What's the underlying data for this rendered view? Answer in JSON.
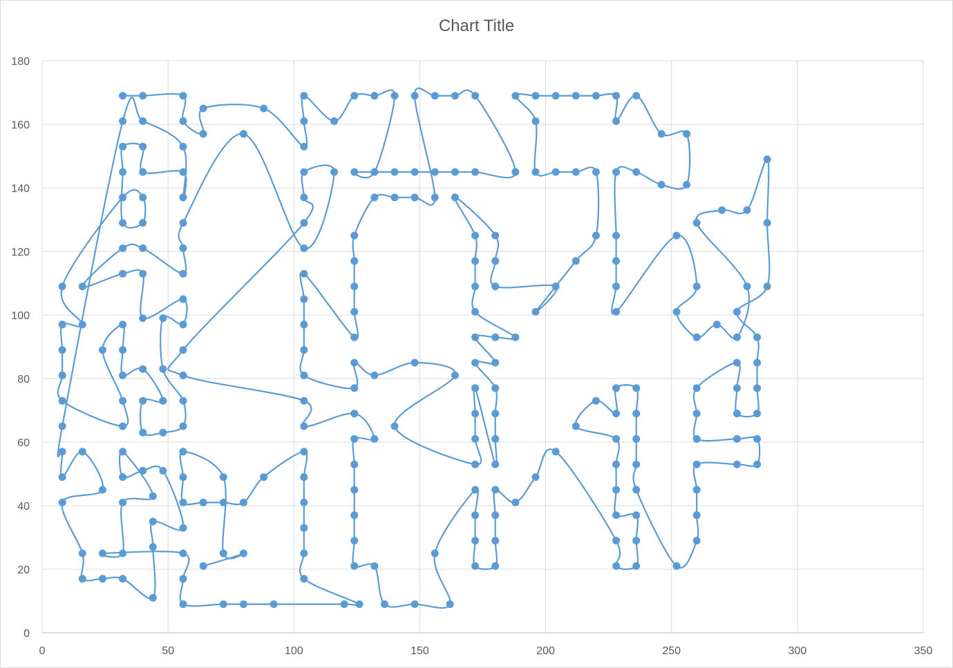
{
  "chart_data": {
    "type": "scatter",
    "title": "Chart Title",
    "xlabel": "",
    "ylabel": "",
    "xlim": [
      0,
      350
    ],
    "ylim": [
      0,
      180
    ],
    "x_ticks": [
      0,
      50,
      100,
      150,
      200,
      250,
      300,
      350
    ],
    "y_ticks": [
      0,
      20,
      40,
      60,
      80,
      100,
      120,
      140,
      160,
      180
    ],
    "grid": true,
    "legend": "none",
    "line_style": "smoothed",
    "series_color": "#5B9BD5",
    "series": [
      {
        "points": [
          [
            32,
            169
          ],
          [
            40,
            169
          ],
          [
            56,
            169
          ],
          [
            56,
            161
          ],
          [
            64,
            157
          ],
          [
            64,
            165
          ],
          [
            88,
            165
          ],
          [
            104,
            153
          ],
          [
            104,
            161
          ],
          [
            104,
            169
          ],
          [
            116,
            161
          ],
          [
            124,
            169
          ],
          [
            132,
            169
          ],
          [
            140,
            169
          ],
          [
            132,
            145
          ],
          [
            124,
            145
          ],
          [
            140,
            145
          ],
          [
            148,
            145
          ],
          [
            156,
            145
          ],
          [
            164,
            145
          ],
          [
            172,
            145
          ],
          [
            188,
            145
          ],
          [
            172,
            169
          ],
          [
            164,
            169
          ],
          [
            156,
            169
          ],
          [
            148,
            169
          ],
          [
            156,
            137
          ],
          [
            148,
            137
          ],
          [
            140,
            137
          ],
          [
            132,
            137
          ],
          [
            124,
            125
          ],
          [
            124,
            117
          ],
          [
            124,
            109
          ],
          [
            124,
            101
          ],
          [
            124,
            93
          ],
          [
            104,
            113
          ],
          [
            104,
            105
          ],
          [
            104,
            97
          ],
          [
            104,
            89
          ],
          [
            104,
            81
          ],
          [
            124,
            77
          ],
          [
            124,
            85
          ],
          [
            132,
            81
          ],
          [
            148,
            85
          ],
          [
            164,
            81
          ],
          [
            140,
            65
          ],
          [
            172,
            53
          ],
          [
            172,
            61
          ],
          [
            172,
            69
          ],
          [
            172,
            77
          ],
          [
            180,
            53
          ],
          [
            180,
            61
          ],
          [
            180,
            69
          ],
          [
            180,
            77
          ],
          [
            172,
            85
          ],
          [
            180,
            85
          ],
          [
            172,
            93
          ],
          [
            180,
            93
          ],
          [
            188,
            93
          ],
          [
            172,
            101
          ],
          [
            172,
            109
          ],
          [
            172,
            117
          ],
          [
            172,
            125
          ],
          [
            164,
            137
          ],
          [
            180,
            125
          ],
          [
            180,
            117
          ],
          [
            180,
            109
          ],
          [
            204,
            109
          ],
          [
            196,
            101
          ],
          [
            212,
            117
          ],
          [
            220,
            125
          ],
          [
            220,
            145
          ],
          [
            212,
            145
          ],
          [
            204,
            145
          ],
          [
            196,
            145
          ],
          [
            196,
            161
          ],
          [
            188,
            169
          ],
          [
            196,
            169
          ],
          [
            204,
            169
          ],
          [
            212,
            169
          ],
          [
            220,
            169
          ],
          [
            228,
            169
          ],
          [
            228,
            161
          ],
          [
            236,
            169
          ],
          [
            246,
            157
          ],
          [
            256,
            157
          ],
          [
            256,
            141
          ],
          [
            246,
            141
          ],
          [
            236,
            145
          ],
          [
            228,
            145
          ],
          [
            228,
            125
          ],
          [
            228,
            117
          ],
          [
            228,
            109
          ],
          [
            228,
            101
          ],
          [
            252,
            125
          ],
          [
            260,
            109
          ],
          [
            252,
            101
          ],
          [
            260,
            93
          ],
          [
            268,
            97
          ],
          [
            276,
            93
          ],
          [
            280,
            109
          ],
          [
            260,
            129
          ],
          [
            270,
            133
          ],
          [
            280,
            133
          ],
          [
            288,
            149
          ],
          [
            288,
            129
          ],
          [
            288,
            109
          ],
          [
            276,
            101
          ],
          [
            284,
            93
          ],
          [
            284,
            85
          ],
          [
            284,
            77
          ],
          [
            284,
            69
          ],
          [
            276,
            69
          ],
          [
            276,
            77
          ],
          [
            276,
            85
          ],
          [
            260,
            77
          ],
          [
            260,
            69
          ],
          [
            260,
            61
          ],
          [
            276,
            61
          ],
          [
            284,
            61
          ],
          [
            284,
            53
          ],
          [
            276,
            53
          ],
          [
            260,
            53
          ],
          [
            260,
            45
          ],
          [
            260,
            37
          ],
          [
            260,
            29
          ],
          [
            252,
            21
          ],
          [
            236,
            45
          ],
          [
            236,
            53
          ],
          [
            236,
            61
          ],
          [
            236,
            69
          ],
          [
            236,
            77
          ],
          [
            228,
            77
          ],
          [
            228,
            69
          ],
          [
            220,
            73
          ],
          [
            212,
            65
          ],
          [
            228,
            61
          ],
          [
            228,
            53
          ],
          [
            228,
            45
          ],
          [
            228,
            37
          ],
          [
            236,
            37
          ],
          [
            236,
            29
          ],
          [
            236,
            21
          ],
          [
            228,
            21
          ],
          [
            228,
            29
          ],
          [
            204,
            57
          ],
          [
            196,
            49
          ],
          [
            188,
            41
          ],
          [
            180,
            45
          ],
          [
            180,
            37
          ],
          [
            180,
            29
          ],
          [
            180,
            21
          ],
          [
            172,
            21
          ],
          [
            172,
            29
          ],
          [
            172,
            37
          ],
          [
            172,
            45
          ],
          [
            156,
            25
          ],
          [
            162,
            9
          ],
          [
            148,
            9
          ],
          [
            136,
            9
          ],
          [
            132,
            21
          ],
          [
            124,
            21
          ],
          [
            124,
            29
          ],
          [
            124,
            37
          ],
          [
            124,
            45
          ],
          [
            124,
            53
          ],
          [
            124,
            61
          ],
          [
            132,
            61
          ],
          [
            124,
            69
          ],
          [
            104,
            65
          ],
          [
            104,
            73
          ],
          [
            56,
            81
          ],
          [
            56,
            89
          ],
          [
            104,
            129
          ],
          [
            104,
            137
          ],
          [
            104,
            145
          ],
          [
            116,
            145
          ],
          [
            104,
            121
          ],
          [
            80,
            157
          ],
          [
            56,
            129
          ],
          [
            56,
            121
          ],
          [
            56,
            113
          ],
          [
            40,
            121
          ],
          [
            32,
            121
          ],
          [
            16,
            109
          ],
          [
            32,
            113
          ],
          [
            40,
            113
          ],
          [
            40,
            99
          ],
          [
            56,
            105
          ],
          [
            56,
            97
          ],
          [
            48,
            99
          ],
          [
            48,
            83
          ],
          [
            56,
            73
          ],
          [
            56,
            65
          ],
          [
            48,
            63
          ],
          [
            40,
            63
          ],
          [
            40,
            73
          ],
          [
            48,
            73
          ],
          [
            40,
            83
          ],
          [
            32,
            81
          ],
          [
            32,
            89
          ],
          [
            32,
            97
          ],
          [
            24,
            89
          ],
          [
            32,
            73
          ],
          [
            32,
            65
          ],
          [
            8,
            73
          ],
          [
            8,
            81
          ],
          [
            8,
            89
          ],
          [
            8,
            97
          ],
          [
            16,
            97
          ],
          [
            8,
            109
          ],
          [
            32,
            137
          ],
          [
            40,
            137
          ],
          [
            40,
            129
          ],
          [
            32,
            129
          ],
          [
            32,
            145
          ],
          [
            32,
            153
          ],
          [
            40,
            153
          ],
          [
            40,
            145
          ],
          [
            56,
            145
          ],
          [
            56,
            137
          ],
          [
            56,
            153
          ],
          [
            40,
            161
          ],
          [
            32,
            161
          ],
          [
            8,
            65
          ],
          [
            8,
            57
          ],
          [
            8,
            49
          ],
          [
            16,
            57
          ],
          [
            24,
            45
          ],
          [
            8,
            41
          ],
          [
            16,
            25
          ],
          [
            16,
            17
          ],
          [
            24,
            17
          ],
          [
            32,
            17
          ],
          [
            44,
            11
          ],
          [
            44,
            27
          ],
          [
            44,
            35
          ],
          [
            56,
            33
          ],
          [
            48,
            51
          ],
          [
            40,
            51
          ],
          [
            32,
            49
          ],
          [
            32,
            57
          ],
          [
            44,
            43
          ],
          [
            32,
            41
          ],
          [
            32,
            25
          ],
          [
            24,
            25
          ],
          [
            56,
            25
          ],
          [
            56,
            17
          ],
          [
            56,
            9
          ],
          [
            72,
            9
          ],
          [
            80,
            9
          ],
          [
            92,
            9
          ],
          [
            120,
            9
          ],
          [
            126,
            9
          ],
          [
            104,
            17
          ],
          [
            104,
            25
          ],
          [
            104,
            33
          ],
          [
            104,
            41
          ],
          [
            104,
            49
          ],
          [
            104,
            57
          ],
          [
            88,
            49
          ],
          [
            80,
            41
          ],
          [
            72,
            41
          ],
          [
            64,
            41
          ],
          [
            56,
            41
          ],
          [
            56,
            49
          ],
          [
            56,
            57
          ],
          [
            72,
            49
          ],
          [
            72,
            25
          ],
          [
            80,
            25
          ],
          [
            64,
            21
          ]
        ]
      }
    ]
  }
}
